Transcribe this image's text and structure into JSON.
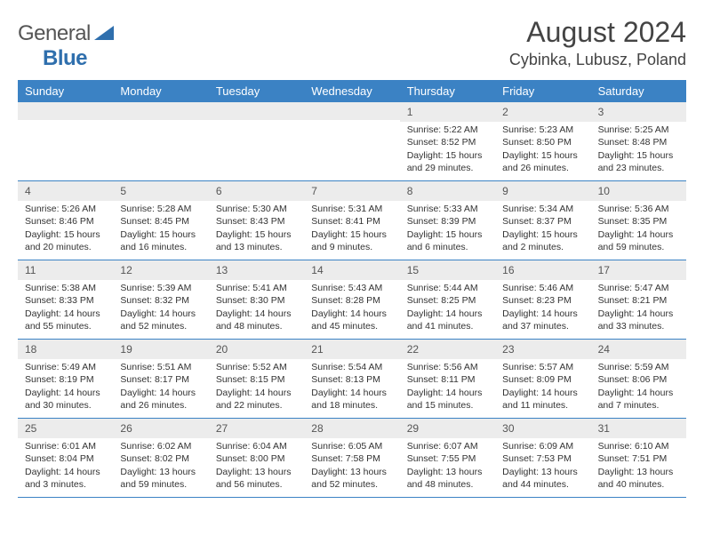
{
  "logo": {
    "part1": "General",
    "part2": "Blue"
  },
  "title": "August 2024",
  "location": "Cybinka, Lubusz, Poland",
  "colors": {
    "header_bg": "#3b82c4",
    "header_text": "#ffffff",
    "day_number_bg": "#ececec",
    "body_text": "#333333",
    "logo_blue": "#2f6fad"
  },
  "weekdays": [
    "Sunday",
    "Monday",
    "Tuesday",
    "Wednesday",
    "Thursday",
    "Friday",
    "Saturday"
  ],
  "weeks": [
    [
      {
        "day": "",
        "sunrise": "",
        "sunset": "",
        "daylight": ""
      },
      {
        "day": "",
        "sunrise": "",
        "sunset": "",
        "daylight": ""
      },
      {
        "day": "",
        "sunrise": "",
        "sunset": "",
        "daylight": ""
      },
      {
        "day": "",
        "sunrise": "",
        "sunset": "",
        "daylight": ""
      },
      {
        "day": "1",
        "sunrise": "Sunrise: 5:22 AM",
        "sunset": "Sunset: 8:52 PM",
        "daylight": "Daylight: 15 hours and 29 minutes."
      },
      {
        "day": "2",
        "sunrise": "Sunrise: 5:23 AM",
        "sunset": "Sunset: 8:50 PM",
        "daylight": "Daylight: 15 hours and 26 minutes."
      },
      {
        "day": "3",
        "sunrise": "Sunrise: 5:25 AM",
        "sunset": "Sunset: 8:48 PM",
        "daylight": "Daylight: 15 hours and 23 minutes."
      }
    ],
    [
      {
        "day": "4",
        "sunrise": "Sunrise: 5:26 AM",
        "sunset": "Sunset: 8:46 PM",
        "daylight": "Daylight: 15 hours and 20 minutes."
      },
      {
        "day": "5",
        "sunrise": "Sunrise: 5:28 AM",
        "sunset": "Sunset: 8:45 PM",
        "daylight": "Daylight: 15 hours and 16 minutes."
      },
      {
        "day": "6",
        "sunrise": "Sunrise: 5:30 AM",
        "sunset": "Sunset: 8:43 PM",
        "daylight": "Daylight: 15 hours and 13 minutes."
      },
      {
        "day": "7",
        "sunrise": "Sunrise: 5:31 AM",
        "sunset": "Sunset: 8:41 PM",
        "daylight": "Daylight: 15 hours and 9 minutes."
      },
      {
        "day": "8",
        "sunrise": "Sunrise: 5:33 AM",
        "sunset": "Sunset: 8:39 PM",
        "daylight": "Daylight: 15 hours and 6 minutes."
      },
      {
        "day": "9",
        "sunrise": "Sunrise: 5:34 AM",
        "sunset": "Sunset: 8:37 PM",
        "daylight": "Daylight: 15 hours and 2 minutes."
      },
      {
        "day": "10",
        "sunrise": "Sunrise: 5:36 AM",
        "sunset": "Sunset: 8:35 PM",
        "daylight": "Daylight: 14 hours and 59 minutes."
      }
    ],
    [
      {
        "day": "11",
        "sunrise": "Sunrise: 5:38 AM",
        "sunset": "Sunset: 8:33 PM",
        "daylight": "Daylight: 14 hours and 55 minutes."
      },
      {
        "day": "12",
        "sunrise": "Sunrise: 5:39 AM",
        "sunset": "Sunset: 8:32 PM",
        "daylight": "Daylight: 14 hours and 52 minutes."
      },
      {
        "day": "13",
        "sunrise": "Sunrise: 5:41 AM",
        "sunset": "Sunset: 8:30 PM",
        "daylight": "Daylight: 14 hours and 48 minutes."
      },
      {
        "day": "14",
        "sunrise": "Sunrise: 5:43 AM",
        "sunset": "Sunset: 8:28 PM",
        "daylight": "Daylight: 14 hours and 45 minutes."
      },
      {
        "day": "15",
        "sunrise": "Sunrise: 5:44 AM",
        "sunset": "Sunset: 8:25 PM",
        "daylight": "Daylight: 14 hours and 41 minutes."
      },
      {
        "day": "16",
        "sunrise": "Sunrise: 5:46 AM",
        "sunset": "Sunset: 8:23 PM",
        "daylight": "Daylight: 14 hours and 37 minutes."
      },
      {
        "day": "17",
        "sunrise": "Sunrise: 5:47 AM",
        "sunset": "Sunset: 8:21 PM",
        "daylight": "Daylight: 14 hours and 33 minutes."
      }
    ],
    [
      {
        "day": "18",
        "sunrise": "Sunrise: 5:49 AM",
        "sunset": "Sunset: 8:19 PM",
        "daylight": "Daylight: 14 hours and 30 minutes."
      },
      {
        "day": "19",
        "sunrise": "Sunrise: 5:51 AM",
        "sunset": "Sunset: 8:17 PM",
        "daylight": "Daylight: 14 hours and 26 minutes."
      },
      {
        "day": "20",
        "sunrise": "Sunrise: 5:52 AM",
        "sunset": "Sunset: 8:15 PM",
        "daylight": "Daylight: 14 hours and 22 minutes."
      },
      {
        "day": "21",
        "sunrise": "Sunrise: 5:54 AM",
        "sunset": "Sunset: 8:13 PM",
        "daylight": "Daylight: 14 hours and 18 minutes."
      },
      {
        "day": "22",
        "sunrise": "Sunrise: 5:56 AM",
        "sunset": "Sunset: 8:11 PM",
        "daylight": "Daylight: 14 hours and 15 minutes."
      },
      {
        "day": "23",
        "sunrise": "Sunrise: 5:57 AM",
        "sunset": "Sunset: 8:09 PM",
        "daylight": "Daylight: 14 hours and 11 minutes."
      },
      {
        "day": "24",
        "sunrise": "Sunrise: 5:59 AM",
        "sunset": "Sunset: 8:06 PM",
        "daylight": "Daylight: 14 hours and 7 minutes."
      }
    ],
    [
      {
        "day": "25",
        "sunrise": "Sunrise: 6:01 AM",
        "sunset": "Sunset: 8:04 PM",
        "daylight": "Daylight: 14 hours and 3 minutes."
      },
      {
        "day": "26",
        "sunrise": "Sunrise: 6:02 AM",
        "sunset": "Sunset: 8:02 PM",
        "daylight": "Daylight: 13 hours and 59 minutes."
      },
      {
        "day": "27",
        "sunrise": "Sunrise: 6:04 AM",
        "sunset": "Sunset: 8:00 PM",
        "daylight": "Daylight: 13 hours and 56 minutes."
      },
      {
        "day": "28",
        "sunrise": "Sunrise: 6:05 AM",
        "sunset": "Sunset: 7:58 PM",
        "daylight": "Daylight: 13 hours and 52 minutes."
      },
      {
        "day": "29",
        "sunrise": "Sunrise: 6:07 AM",
        "sunset": "Sunset: 7:55 PM",
        "daylight": "Daylight: 13 hours and 48 minutes."
      },
      {
        "day": "30",
        "sunrise": "Sunrise: 6:09 AM",
        "sunset": "Sunset: 7:53 PM",
        "daylight": "Daylight: 13 hours and 44 minutes."
      },
      {
        "day": "31",
        "sunrise": "Sunrise: 6:10 AM",
        "sunset": "Sunset: 7:51 PM",
        "daylight": "Daylight: 13 hours and 40 minutes."
      }
    ]
  ]
}
